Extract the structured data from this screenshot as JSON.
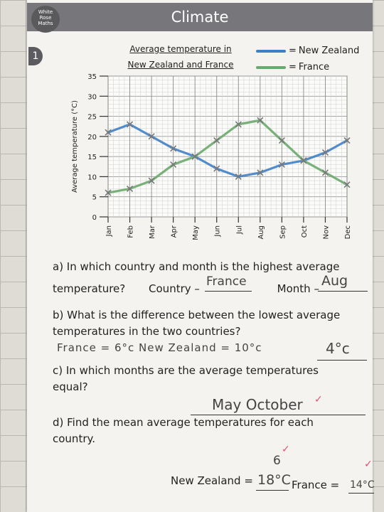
{
  "header": {
    "title": "Climate"
  },
  "logo": {
    "line1": "White",
    "line2": "Rose",
    "line3": "Maths"
  },
  "question_number": "1",
  "chart_data": {
    "type": "line",
    "title_line1": "Average temperature in",
    "title_line2": "New Zealand and France",
    "ylabel": "Average temperature (°C)",
    "xlabel": "",
    "categories": [
      "Jan",
      "Feb",
      "Mar",
      "Apr",
      "May",
      "Jun",
      "Jul",
      "Aug",
      "Sep",
      "Oct",
      "Nov",
      "Dec"
    ],
    "ylim": [
      0,
      35
    ],
    "yticks": [
      "0",
      "5",
      "10",
      "15",
      "20",
      "25",
      "30",
      "35"
    ],
    "grid": true,
    "series": [
      {
        "name": "New Zealand",
        "color": "#3f7fc6",
        "values": [
          21,
          23,
          20,
          17,
          15,
          12,
          10,
          11,
          13,
          14,
          16,
          19
        ]
      },
      {
        "name": "France",
        "color": "#6aa96c",
        "values": [
          6,
          7,
          9,
          13,
          15,
          19,
          23,
          24,
          19,
          14,
          11,
          8
        ]
      }
    ]
  },
  "legend": {
    "nz": "New Zealand",
    "fr": "France",
    "eq": "="
  },
  "questions": {
    "a_line1": "a) In which country and month is the highest average",
    "a_line2": "temperature?",
    "a_country_label": "Country –",
    "a_month_label": "Month –",
    "b_line1": "b) What is the difference between the lowest average",
    "b_line2": "temperatures in the two countries?",
    "c_line1": "c) In which months are the average temperatures",
    "c_line2": "equal?",
    "d_line1": "d) Find the mean average temperatures for each",
    "d_line2": "country.",
    "nz_label": "New Zealand =",
    "fr_label": "France ="
  },
  "handwriting": {
    "a_country": "France",
    "a_month": "Aug",
    "b_working": "France = 6°c  New Zealand = 10°c",
    "b_answer": "4°c",
    "c_answer": "May October",
    "d_nz": "18°C",
    "d_nz_correction": "6",
    "d_fr": "14°C",
    "tick": "✓"
  }
}
